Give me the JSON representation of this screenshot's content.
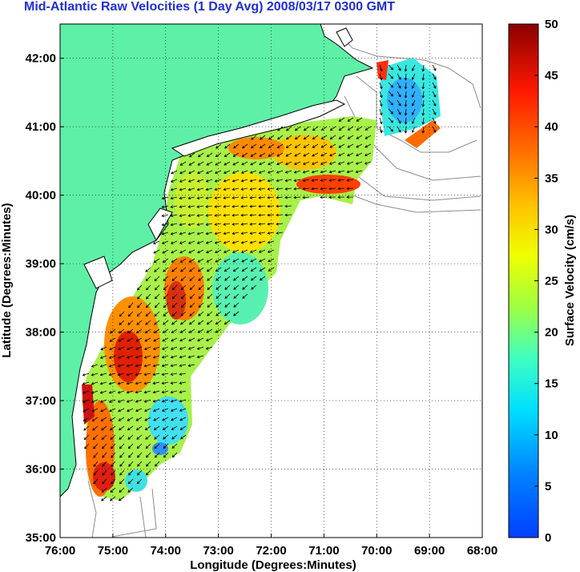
{
  "title": "Mid-Atlantic Raw Velocities (1 Day Avg) 2008/03/17 0300 GMT",
  "map": {
    "xlabel": "Longitude (Degrees:Minutes)",
    "ylabel": "Latitude (Degrees:Minutes)",
    "x_ticks": [
      "76:00",
      "75:00",
      "74:00",
      "73:00",
      "72:00",
      "71:00",
      "70:00",
      "69:00",
      "68:00"
    ],
    "y_ticks": [
      "35:00",
      "36:00",
      "37:00",
      "38:00",
      "39:00",
      "40:00",
      "41:00",
      "42:00"
    ],
    "lon_range": [
      -76,
      -68
    ],
    "lat_range": [
      35,
      42.5
    ],
    "grid": true,
    "land_color": "#5ef0a6",
    "coast_outline_color": "#000000",
    "bathymetry_color": "#8c8c8c",
    "vector_color": "#000000"
  },
  "colorbar": {
    "label": "Surface Velocity (cm/s)",
    "ticks": [
      "0",
      "5",
      "10",
      "15",
      "20",
      "25",
      "30",
      "35",
      "40",
      "45",
      "50"
    ],
    "range": [
      0,
      50
    ],
    "colormap": "jet"
  }
}
